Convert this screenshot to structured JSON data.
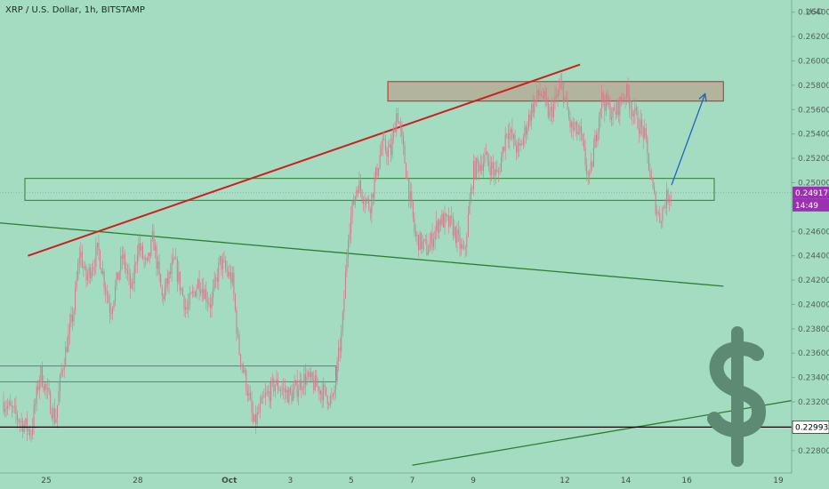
{
  "header": {
    "title": "XRP / U.S. Dollar, 1h, BITSTAMP"
  },
  "colors": {
    "background": "#a3dcc0",
    "candle": "#d9778a",
    "resistance_zone": "#cc2222",
    "support_zone": "#2e7d32",
    "trendline_red": "#cc1f1f",
    "trendline_green": "#2e7d32",
    "arrow": "#1e63c4",
    "range_box": "#8b5fbf",
    "last_price_bg": "#9b30b0",
    "level_line": "#000000",
    "dollar_sign": "#5c8a72"
  },
  "chart_data": {
    "type": "candlestick",
    "symbol": "XRP / U.S. Dollar",
    "interval": "1h",
    "exchange": "BITSTAMP",
    "currency": "USD",
    "ylim": [
      0.2266,
      0.265
    ],
    "y_ticks": [
      "0.22800",
      "0.23000",
      "0.23200",
      "0.23400",
      "0.23600",
      "0.23800",
      "0.24000",
      "0.24200",
      "0.24400",
      "0.24600",
      "0.24800",
      "0.25000",
      "0.25200",
      "0.25400",
      "0.25600",
      "0.25800",
      "0.26000",
      "0.26200",
      "0.26400"
    ],
    "x_ticks": [
      {
        "label": "25",
        "day": 0
      },
      {
        "label": "28",
        "day": 3
      },
      {
        "label": "Oct",
        "day": 6
      },
      {
        "label": "3",
        "day": 8
      },
      {
        "label": "5",
        "day": 10
      },
      {
        "label": "7",
        "day": 12
      },
      {
        "label": "9",
        "day": 14
      },
      {
        "label": "12",
        "day": 17
      },
      {
        "label": "14",
        "day": 19
      },
      {
        "label": "16",
        "day": 21
      },
      {
        "label": "19",
        "day": 24
      }
    ],
    "price_path": [
      [
        -1.4,
        0.232
      ],
      [
        -0.5,
        0.2295
      ],
      [
        -0.2,
        0.2345
      ],
      [
        0.3,
        0.2305
      ],
      [
        0.5,
        0.2345
      ],
      [
        0.9,
        0.2395
      ],
      [
        1.1,
        0.2445
      ],
      [
        1.3,
        0.242
      ],
      [
        1.7,
        0.2445
      ],
      [
        2.1,
        0.2395
      ],
      [
        2.5,
        0.244
      ],
      [
        2.8,
        0.241
      ],
      [
        3.0,
        0.245
      ],
      [
        3.3,
        0.243
      ],
      [
        3.5,
        0.2455
      ],
      [
        3.8,
        0.2405
      ],
      [
        4.2,
        0.2435
      ],
      [
        4.6,
        0.2395
      ],
      [
        5.0,
        0.242
      ],
      [
        5.4,
        0.24
      ],
      [
        5.7,
        0.2435
      ],
      [
        6.1,
        0.242
      ],
      [
        6.3,
        0.2365
      ],
      [
        6.6,
        0.233
      ],
      [
        6.8,
        0.23
      ],
      [
        7.1,
        0.232
      ],
      [
        7.5,
        0.2335
      ],
      [
        8.0,
        0.2325
      ],
      [
        8.5,
        0.234
      ],
      [
        9.0,
        0.233
      ],
      [
        9.4,
        0.232
      ],
      [
        9.7,
        0.238
      ],
      [
        9.9,
        0.246
      ],
      [
        10.2,
        0.25
      ],
      [
        10.6,
        0.248
      ],
      [
        11.0,
        0.253
      ],
      [
        11.3,
        0.2525
      ],
      [
        11.5,
        0.256
      ],
      [
        11.8,
        0.251
      ],
      [
        12.1,
        0.2455
      ],
      [
        12.5,
        0.2445
      ],
      [
        12.9,
        0.247
      ],
      [
        13.3,
        0.2465
      ],
      [
        13.7,
        0.244
      ],
      [
        14.0,
        0.251
      ],
      [
        14.4,
        0.252
      ],
      [
        14.8,
        0.2505
      ],
      [
        15.1,
        0.2545
      ],
      [
        15.5,
        0.2525
      ],
      [
        15.9,
        0.256
      ],
      [
        16.2,
        0.2575
      ],
      [
        16.5,
        0.2555
      ],
      [
        16.9,
        0.258
      ],
      [
        17.2,
        0.2545
      ],
      [
        17.5,
        0.254
      ],
      [
        17.8,
        0.25
      ],
      [
        18.2,
        0.257
      ],
      [
        18.6,
        0.2555
      ],
      [
        19.0,
        0.2575
      ],
      [
        19.3,
        0.2555
      ],
      [
        19.6,
        0.254
      ],
      [
        19.9,
        0.249
      ],
      [
        20.1,
        0.247
      ],
      [
        20.3,
        0.2485
      ],
      [
        20.5,
        0.2495
      ]
    ],
    "last_price": "0.24917",
    "countdown": "14:49",
    "horizontal_level": "0.22993",
    "annotations": {
      "resistance_zone": {
        "day_from": 11.2,
        "day_to": 22.2,
        "price_low": 0.2567,
        "price_high": 0.2583
      },
      "support_zone": {
        "day_from": -0.7,
        "day_to": 21.9,
        "price_low": 0.24855,
        "price_high": 0.25035
      },
      "range_box": {
        "day_from": -2.0,
        "day_to": 9.5,
        "price_low": 0.23365,
        "price_high": 0.23495
      },
      "red_trendline": {
        "from": [
          -0.6,
          0.244
        ],
        "to": [
          17.5,
          0.2597
        ]
      },
      "green_trendline_falling": {
        "from": [
          -2.0,
          0.2468
        ],
        "to": [
          22.2,
          0.2415
        ]
      },
      "green_trendline_rising": {
        "from": [
          12.0,
          0.2268
        ],
        "to": [
          27.0,
          0.2332
        ]
      },
      "projection_arrow": {
        "from": [
          20.5,
          0.2498
        ],
        "to": [
          21.6,
          0.2573
        ]
      },
      "dollar_icon": "dollar-sign-icon"
    }
  }
}
